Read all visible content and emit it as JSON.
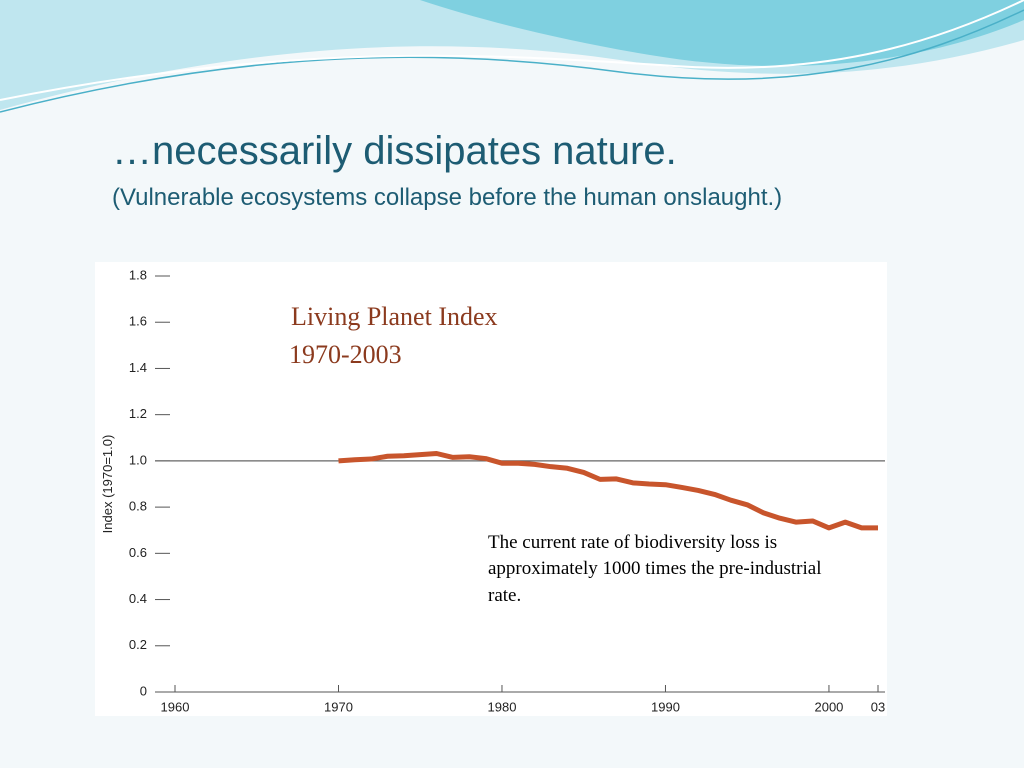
{
  "slide": {
    "title": "…necessarily dissipates nature.",
    "subtitle": "(Vulnerable ecosystems collapse before the human onslaught.)"
  },
  "chart_data": {
    "type": "line",
    "title": "Living Planet Index",
    "subtitle": "1970-2003",
    "ylabel": "Index (1970=1.0)",
    "annotation": [
      "The current rate of biodiversity loss is",
      "approximately 1000 times the pre-industrial",
      "rate."
    ],
    "x": [
      1970,
      1971,
      1972,
      1973,
      1974,
      1975,
      1976,
      1977,
      1978,
      1979,
      1980,
      1981,
      1982,
      1983,
      1984,
      1985,
      1986,
      1987,
      1988,
      1989,
      1990,
      1991,
      1992,
      1993,
      1994,
      1995,
      1996,
      1997,
      1998,
      1999,
      2000,
      2001,
      2002,
      2003
    ],
    "series": [
      {
        "name": "Living Planet Index",
        "color": "#c8552c",
        "values": [
          1.0,
          1.005,
          1.008,
          1.02,
          1.022,
          1.027,
          1.032,
          1.015,
          1.018,
          1.01,
          0.99,
          0.99,
          0.985,
          0.975,
          0.968,
          0.95,
          0.92,
          0.922,
          0.905,
          0.9,
          0.897,
          0.885,
          0.872,
          0.855,
          0.83,
          0.81,
          0.775,
          0.752,
          0.735,
          0.74,
          0.71,
          0.735,
          0.71,
          0.71
        ]
      }
    ],
    "xlim": [
      1960,
      2003
    ],
    "ylim": [
      0,
      1.8
    ],
    "xticks": [
      1960,
      1970,
      1980,
      1990,
      2000,
      {
        "value": 2003,
        "label": "03"
      }
    ],
    "yticks": [
      0,
      0.2,
      0.4,
      0.6,
      0.8,
      {
        "value": 1,
        "label": "1.0"
      },
      1.2,
      1.4,
      1.6,
      1.8
    ],
    "reference_line": 1
  }
}
